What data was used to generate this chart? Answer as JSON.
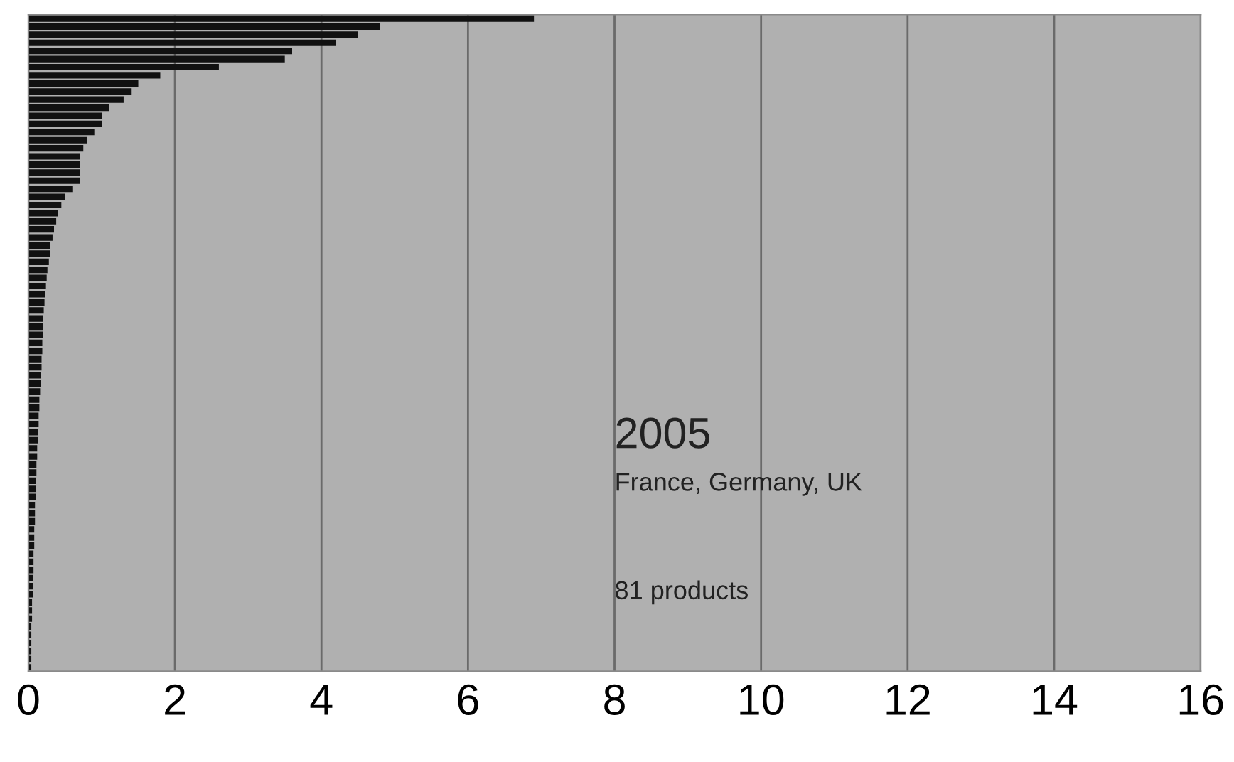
{
  "chart_data": {
    "type": "bar",
    "orientation": "horizontal",
    "categories": [
      null,
      null,
      null,
      null,
      null,
      null,
      null,
      null,
      null,
      null,
      null,
      null,
      null,
      null,
      null,
      null,
      null,
      null,
      null,
      null,
      null,
      null,
      null,
      null,
      null,
      null,
      null,
      null,
      null,
      null,
      null,
      null,
      null,
      null,
      null,
      null,
      null,
      null,
      null,
      null,
      null,
      null,
      null,
      null,
      null,
      null,
      null,
      null,
      null,
      null,
      null,
      null,
      null,
      null,
      null,
      null,
      null,
      null,
      null,
      null,
      null,
      null,
      null,
      null,
      null,
      null,
      null,
      null,
      null,
      null,
      null,
      null,
      null,
      null,
      null,
      null,
      null,
      null,
      null,
      null,
      null
    ],
    "values": [
      6.9,
      4.8,
      4.5,
      4.2,
      3.6,
      3.5,
      2.6,
      1.8,
      1.5,
      1.4,
      1.3,
      1.1,
      1.0,
      1.0,
      0.9,
      0.8,
      0.75,
      0.7,
      0.7,
      0.7,
      0.7,
      0.6,
      0.5,
      0.45,
      0.4,
      0.38,
      0.35,
      0.33,
      0.3,
      0.3,
      0.28,
      0.26,
      0.25,
      0.24,
      0.23,
      0.22,
      0.21,
      0.2,
      0.2,
      0.2,
      0.19,
      0.19,
      0.18,
      0.18,
      0.17,
      0.17,
      0.16,
      0.15,
      0.15,
      0.14,
      0.14,
      0.13,
      0.13,
      0.12,
      0.12,
      0.11,
      0.11,
      0.1,
      0.1,
      0.1,
      0.09,
      0.09,
      0.09,
      0.08,
      0.08,
      0.08,
      0.07,
      0.07,
      0.07,
      0.06,
      0.06,
      0.06,
      0.05,
      0.05,
      0.05,
      0.04,
      0.04,
      0.04,
      0.04,
      0.04,
      0.04
    ],
    "color": "#111111",
    "xlim": [
      0,
      16
    ],
    "xticks": [
      0,
      2,
      4,
      6,
      8,
      10,
      12,
      14,
      16
    ],
    "grid": "x",
    "tick_labels": "x",
    "annotations": [
      "2005",
      "France, Germany, UK",
      "81 products"
    ]
  }
}
